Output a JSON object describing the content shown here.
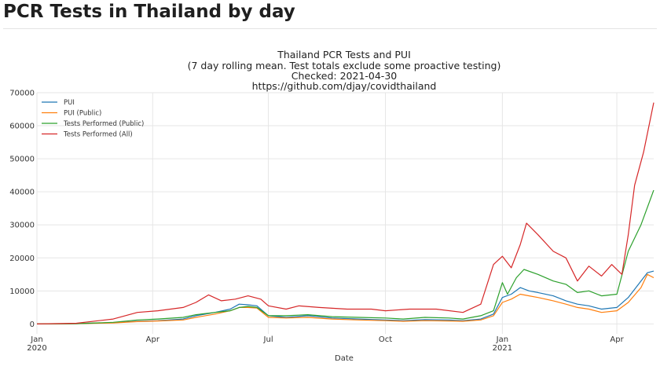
{
  "page": {
    "heading": "PCR Tests in Thailand by day"
  },
  "chart_data": {
    "type": "line",
    "title_lines": [
      "Thailand PCR Tests and PUI",
      "(7 day rolling mean. Test totals exclude some proactive testing)",
      "Checked: 2021-04-30",
      "https://github.com/djay/covidthailand"
    ],
    "xlabel": "Date",
    "ylabel": "",
    "xlim": [
      "2020-01-01",
      "2021-04-30"
    ],
    "ylim": [
      -3000,
      70000
    ],
    "grid": true,
    "legend_position": "top-left",
    "x_ticks": [
      {
        "date": "2020-01-01",
        "label": "Jan",
        "sublabel": "2020"
      },
      {
        "date": "2020-04-01",
        "label": "Apr",
        "sublabel": ""
      },
      {
        "date": "2020-07-01",
        "label": "Jul",
        "sublabel": ""
      },
      {
        "date": "2020-10-01",
        "label": "Oct",
        "sublabel": ""
      },
      {
        "date": "2021-01-01",
        "label": "Jan",
        "sublabel": "2021"
      },
      {
        "date": "2021-04-01",
        "label": "Apr",
        "sublabel": ""
      }
    ],
    "y_ticks": [
      0,
      10000,
      20000,
      30000,
      40000,
      50000,
      60000,
      70000
    ],
    "series": [
      {
        "name": "PUI",
        "color": "#1f77b4",
        "points": [
          [
            "2020-01-01",
            0
          ],
          [
            "2020-02-01",
            100
          ],
          [
            "2020-03-01",
            400
          ],
          [
            "2020-03-20",
            800
          ],
          [
            "2020-04-05",
            1000
          ],
          [
            "2020-04-25",
            1500
          ],
          [
            "2020-05-05",
            2500
          ],
          [
            "2020-05-20",
            3500
          ],
          [
            "2020-06-01",
            4500
          ],
          [
            "2020-06-08",
            6000
          ],
          [
            "2020-06-15",
            5800
          ],
          [
            "2020-06-22",
            5500
          ],
          [
            "2020-07-01",
            2500
          ],
          [
            "2020-07-15",
            2000
          ],
          [
            "2020-08-01",
            2500
          ],
          [
            "2020-08-20",
            1800
          ],
          [
            "2020-09-10",
            1500
          ],
          [
            "2020-10-01",
            1200
          ],
          [
            "2020-10-15",
            1000
          ],
          [
            "2020-11-01",
            1300
          ],
          [
            "2020-11-20",
            1200
          ],
          [
            "2020-12-01",
            1000
          ],
          [
            "2020-12-15",
            1500
          ],
          [
            "2020-12-25",
            3000
          ],
          [
            "2021-01-01",
            8000
          ],
          [
            "2021-01-08",
            9000
          ],
          [
            "2021-01-15",
            11000
          ],
          [
            "2021-01-22",
            10000
          ],
          [
            "2021-01-29",
            9500
          ],
          [
            "2021-02-10",
            8500
          ],
          [
            "2021-02-20",
            7000
          ],
          [
            "2021-03-01",
            6000
          ],
          [
            "2021-03-10",
            5500
          ],
          [
            "2021-03-20",
            4500
          ],
          [
            "2021-04-01",
            5000
          ],
          [
            "2021-04-10",
            8000
          ],
          [
            "2021-04-20",
            13000
          ],
          [
            "2021-04-25",
            15500
          ],
          [
            "2021-04-30",
            16000
          ]
        ]
      },
      {
        "name": "PUI (Public)",
        "color": "#ff7f0e",
        "points": [
          [
            "2020-01-01",
            0
          ],
          [
            "2020-02-01",
            100
          ],
          [
            "2020-03-01",
            300
          ],
          [
            "2020-03-20",
            700
          ],
          [
            "2020-04-05",
            900
          ],
          [
            "2020-04-25",
            1200
          ],
          [
            "2020-05-05",
            2000
          ],
          [
            "2020-05-20",
            3000
          ],
          [
            "2020-06-01",
            4000
          ],
          [
            "2020-06-08",
            5000
          ],
          [
            "2020-06-15",
            5000
          ],
          [
            "2020-06-22",
            4800
          ],
          [
            "2020-07-01",
            2000
          ],
          [
            "2020-07-15",
            1800
          ],
          [
            "2020-08-01",
            2000
          ],
          [
            "2020-08-20",
            1500
          ],
          [
            "2020-09-10",
            1200
          ],
          [
            "2020-10-01",
            1000
          ],
          [
            "2020-10-15",
            800
          ],
          [
            "2020-11-01",
            1000
          ],
          [
            "2020-11-20",
            900
          ],
          [
            "2020-12-01",
            800
          ],
          [
            "2020-12-15",
            1200
          ],
          [
            "2020-12-25",
            2500
          ],
          [
            "2021-01-01",
            6500
          ],
          [
            "2021-01-08",
            7500
          ],
          [
            "2021-01-15",
            9000
          ],
          [
            "2021-01-22",
            8500
          ],
          [
            "2021-01-29",
            8000
          ],
          [
            "2021-02-10",
            7000
          ],
          [
            "2021-02-20",
            6000
          ],
          [
            "2021-03-01",
            5000
          ],
          [
            "2021-03-10",
            4500
          ],
          [
            "2021-03-20",
            3500
          ],
          [
            "2021-04-01",
            4000
          ],
          [
            "2021-04-10",
            6500
          ],
          [
            "2021-04-20",
            11000
          ],
          [
            "2021-04-25",
            15000
          ],
          [
            "2021-04-30",
            14000
          ]
        ]
      },
      {
        "name": "Tests Performed (Public)",
        "color": "#2ca02c",
        "points": [
          [
            "2020-01-01",
            0
          ],
          [
            "2020-02-01",
            100
          ],
          [
            "2020-03-01",
            500
          ],
          [
            "2020-03-20",
            1200
          ],
          [
            "2020-04-05",
            1500
          ],
          [
            "2020-04-25",
            2000
          ],
          [
            "2020-05-05",
            2800
          ],
          [
            "2020-05-20",
            3500
          ],
          [
            "2020-06-01",
            4000
          ],
          [
            "2020-06-08",
            5000
          ],
          [
            "2020-06-15",
            5300
          ],
          [
            "2020-06-22",
            5000
          ],
          [
            "2020-07-01",
            2500
          ],
          [
            "2020-07-15",
            2500
          ],
          [
            "2020-08-01",
            2800
          ],
          [
            "2020-08-20",
            2200
          ],
          [
            "2020-09-10",
            2000
          ],
          [
            "2020-10-01",
            1800
          ],
          [
            "2020-10-15",
            1500
          ],
          [
            "2020-11-01",
            2000
          ],
          [
            "2020-11-20",
            1800
          ],
          [
            "2020-12-01",
            1500
          ],
          [
            "2020-12-15",
            2500
          ],
          [
            "2020-12-25",
            4000
          ],
          [
            "2021-01-01",
            12500
          ],
          [
            "2021-01-05",
            9000
          ],
          [
            "2021-01-12",
            14000
          ],
          [
            "2021-01-18",
            16500
          ],
          [
            "2021-01-29",
            15000
          ],
          [
            "2021-02-10",
            13000
          ],
          [
            "2021-02-20",
            12000
          ],
          [
            "2021-03-01",
            9500
          ],
          [
            "2021-03-10",
            10000
          ],
          [
            "2021-03-20",
            8500
          ],
          [
            "2021-04-01",
            9000
          ],
          [
            "2021-04-10",
            22000
          ],
          [
            "2021-04-20",
            30000
          ],
          [
            "2021-04-30",
            40500
          ]
        ]
      },
      {
        "name": "Tests Performed (All)",
        "color": "#d62728",
        "points": [
          [
            "2020-01-01",
            0
          ],
          [
            "2020-02-01",
            200
          ],
          [
            "2020-03-01",
            1500
          ],
          [
            "2020-03-20",
            3500
          ],
          [
            "2020-04-05",
            4000
          ],
          [
            "2020-04-25",
            5000
          ],
          [
            "2020-05-05",
            6500
          ],
          [
            "2020-05-15",
            8800
          ],
          [
            "2020-05-25",
            7000
          ],
          [
            "2020-06-05",
            7500
          ],
          [
            "2020-06-15",
            8500
          ],
          [
            "2020-06-25",
            7500
          ],
          [
            "2020-07-01",
            5500
          ],
          [
            "2020-07-15",
            4500
          ],
          [
            "2020-07-25",
            5500
          ],
          [
            "2020-08-10",
            5000
          ],
          [
            "2020-09-01",
            4500
          ],
          [
            "2020-09-20",
            4500
          ],
          [
            "2020-10-01",
            4000
          ],
          [
            "2020-10-20",
            4500
          ],
          [
            "2020-11-10",
            4500
          ],
          [
            "2020-12-01",
            3500
          ],
          [
            "2020-12-15",
            6000
          ],
          [
            "2020-12-25",
            18000
          ],
          [
            "2021-01-01",
            20500
          ],
          [
            "2021-01-08",
            17000
          ],
          [
            "2021-01-15",
            24000
          ],
          [
            "2021-01-20",
            30500
          ],
          [
            "2021-01-29",
            27000
          ],
          [
            "2021-02-10",
            22000
          ],
          [
            "2021-02-20",
            20000
          ],
          [
            "2021-03-01",
            13000
          ],
          [
            "2021-03-10",
            17500
          ],
          [
            "2021-03-20",
            14500
          ],
          [
            "2021-03-28",
            18000
          ],
          [
            "2021-04-05",
            15000
          ],
          [
            "2021-04-10",
            27000
          ],
          [
            "2021-04-15",
            42000
          ],
          [
            "2021-04-22",
            52000
          ],
          [
            "2021-04-30",
            67000
          ]
        ]
      }
    ]
  }
}
